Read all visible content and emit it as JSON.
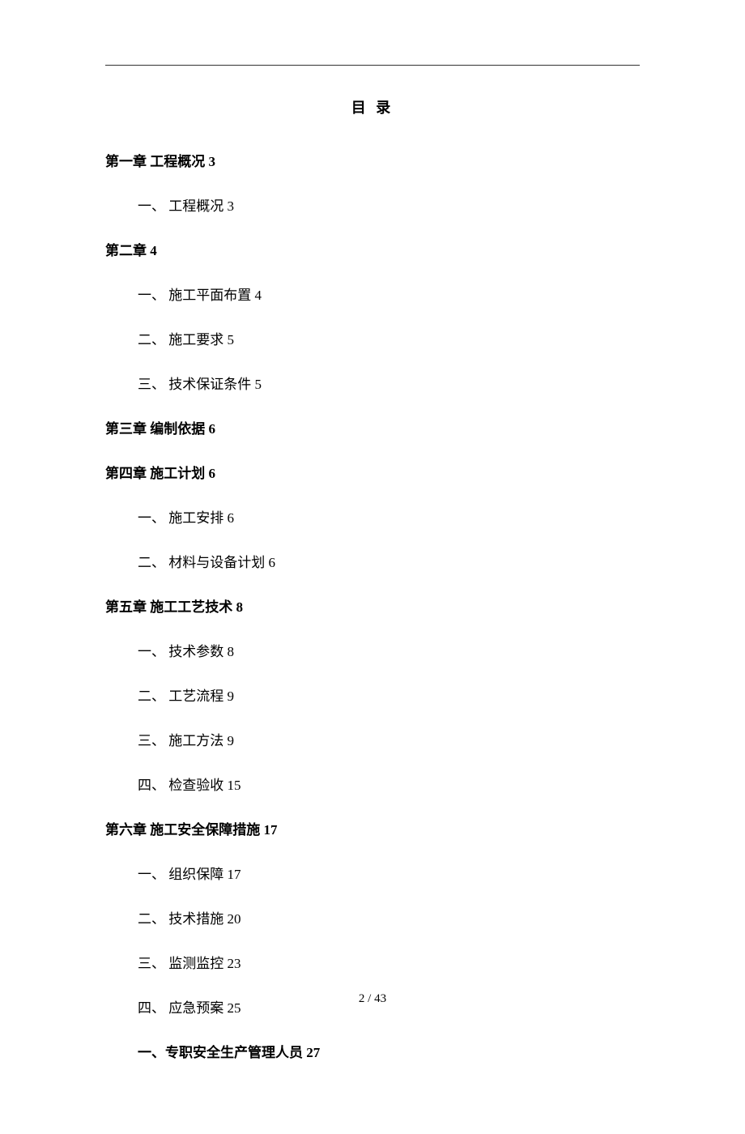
{
  "title": "目 录",
  "toc": {
    "chapter1": {
      "label": "第一章 工程概况 3",
      "items": [
        {
          "label": "一、 工程概况 3"
        }
      ]
    },
    "chapter2": {
      "label": "第二章 4",
      "items": [
        {
          "label": "一、 施工平面布置 4"
        },
        {
          "label": "二、 施工要求 5"
        },
        {
          "label": "三、 技术保证条件 5"
        }
      ]
    },
    "chapter3": {
      "label": "第三章 编制依据 6",
      "items": []
    },
    "chapter4": {
      "label": "第四章 施工计划 6",
      "items": [
        {
          "label": "一、 施工安排 6"
        },
        {
          "label": "二、 材料与设备计划 6"
        }
      ]
    },
    "chapter5": {
      "label": "第五章 施工工艺技术 8",
      "items": [
        {
          "label": "一、 技术参数 8"
        },
        {
          "label": "二、 工艺流程 9"
        },
        {
          "label": "三、 施工方法 9"
        },
        {
          "label": "四、 检查验收 15"
        }
      ]
    },
    "chapter6": {
      "label": "第六章 施工安全保障措施 17",
      "items": [
        {
          "label": "一、 组织保障 17"
        },
        {
          "label": "二、 技术措施 20"
        },
        {
          "label": "三、 监测监控 23"
        },
        {
          "label": "四、 应急预案 25"
        },
        {
          "label": "一、专职安全生产管理人员 27",
          "bold": true
        }
      ]
    }
  },
  "page_number": "2 / 43"
}
